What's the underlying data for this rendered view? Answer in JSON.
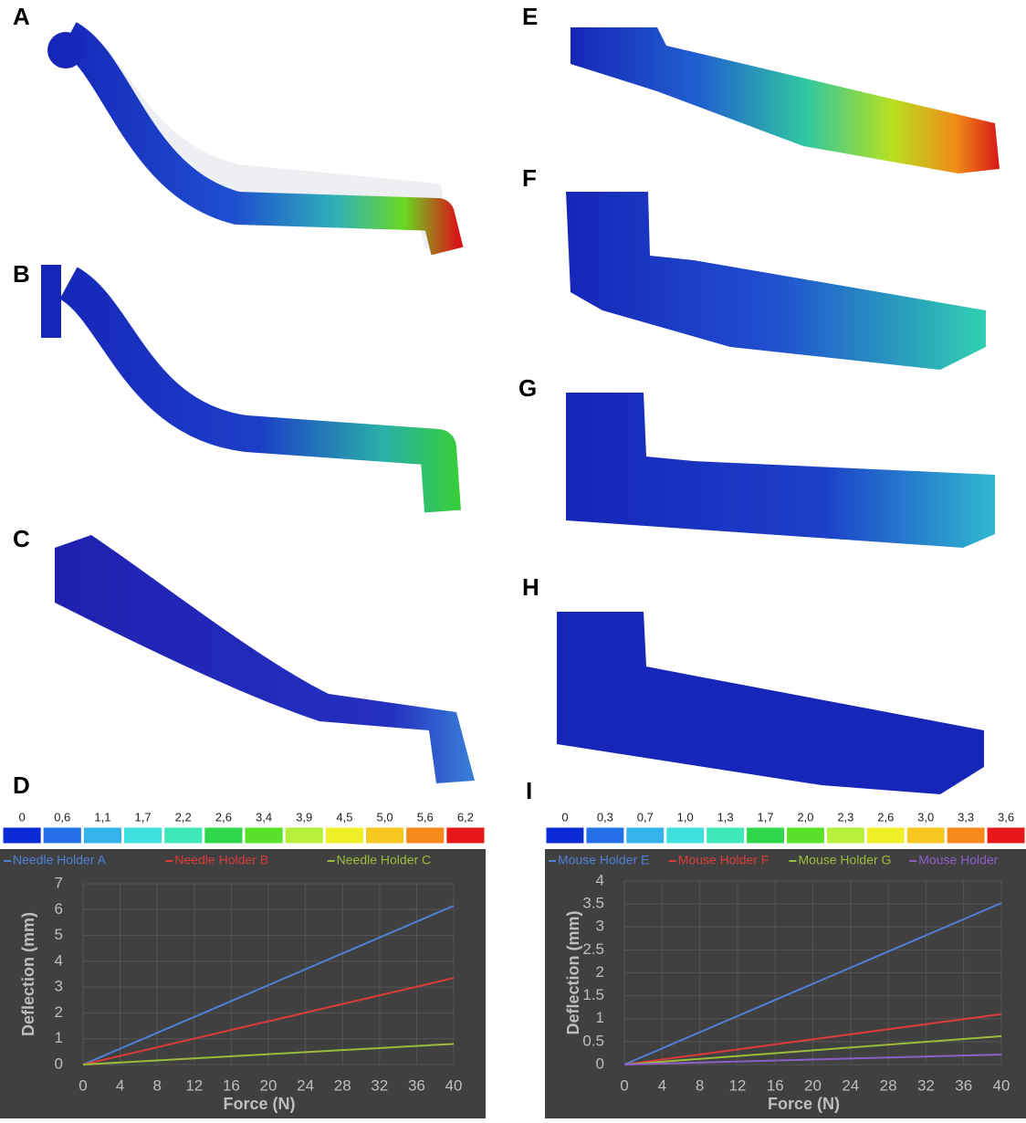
{
  "panels": [
    "A",
    "B",
    "C",
    "D",
    "E",
    "F",
    "G",
    "H",
    "I"
  ],
  "chart_data": [
    {
      "type": "line",
      "x_label": "Force (N)",
      "y_label": "Deflection (mm)",
      "x": [
        0,
        40
      ],
      "series": [
        {
          "name": "Needle Holder A",
          "color": "#4f7fd6",
          "values": [
            0,
            6.15
          ]
        },
        {
          "name": "Needle Holder B",
          "color": "#d93a3a",
          "values": [
            0,
            3.35
          ]
        },
        {
          "name": "Needle Holder C",
          "color": "#9bbb3a",
          "values": [
            0,
            0.8
          ]
        }
      ],
      "xlim": [
        0,
        40
      ],
      "xticks": [
        0,
        4,
        8,
        12,
        16,
        20,
        24,
        28,
        32,
        36,
        40
      ],
      "ylim": [
        0,
        7
      ],
      "yticks": [
        0,
        1,
        2,
        3,
        4,
        5,
        6,
        7
      ],
      "grid": true,
      "colorbar": {
        "ticks": [
          {
            "value": 0,
            "label": "0"
          },
          {
            "value": 0.6,
            "label": "0,6"
          },
          {
            "value": 1.1,
            "label": "1,1"
          },
          {
            "value": 1.7,
            "label": "1,7"
          },
          {
            "value": 2.2,
            "label": "2,2"
          },
          {
            "value": 2.6,
            "label": "2,6"
          },
          {
            "value": 3.4,
            "label": "3,4"
          },
          {
            "value": 3.9,
            "label": "3,9"
          },
          {
            "value": 4.5,
            "label": "4,5"
          },
          {
            "value": 5.0,
            "label": "5,0"
          },
          {
            "value": 5.6,
            "label": "5,6"
          },
          {
            "value": 6.2,
            "label": "6,2"
          }
        ],
        "colors": [
          "#0b2bd6",
          "#2370e8",
          "#35b2ea",
          "#3fe0e0",
          "#3ee8b8",
          "#2fd84a",
          "#5ae22a",
          "#b6f03a",
          "#f0f02a",
          "#f7c820",
          "#f58a1a",
          "#e81818"
        ]
      }
    },
    {
      "type": "line",
      "x_label": "Force (N)",
      "y_label": "Deflection (mm)",
      "x": [
        0,
        40
      ],
      "series": [
        {
          "name": "Mouse Holder E",
          "color": "#4f7fd6",
          "values": [
            0,
            3.52
          ]
        },
        {
          "name": "Mouse Holder F",
          "color": "#d93a3a",
          "values": [
            0,
            1.1
          ]
        },
        {
          "name": "Mouse Holder G",
          "color": "#9bbb3a",
          "values": [
            0,
            0.62
          ]
        },
        {
          "name": "Mouse Holder",
          "color": "#8a5fc8",
          "values": [
            0,
            0.22
          ]
        }
      ],
      "xlim": [
        0,
        40
      ],
      "xticks": [
        0,
        4,
        8,
        12,
        16,
        20,
        24,
        28,
        32,
        36,
        40
      ],
      "ylim": [
        0,
        4
      ],
      "yticks": [
        0,
        0.5,
        1,
        1.5,
        2,
        2.5,
        3,
        3.5,
        4
      ],
      "grid": true,
      "colorbar": {
        "ticks": [
          {
            "value": 0,
            "label": "0"
          },
          {
            "value": 0.3,
            "label": "0,3"
          },
          {
            "value": 0.7,
            "label": "0,7"
          },
          {
            "value": 1.0,
            "label": "1,0"
          },
          {
            "value": 1.3,
            "label": "1,3"
          },
          {
            "value": 1.7,
            "label": "1,7"
          },
          {
            "value": 2.0,
            "label": "2,0"
          },
          {
            "value": 2.3,
            "label": "2,3"
          },
          {
            "value": 2.6,
            "label": "2,6"
          },
          {
            "value": 3.0,
            "label": "3,0"
          },
          {
            "value": 3.3,
            "label": "3,3"
          },
          {
            "value": 3.6,
            "label": "3,6"
          }
        ],
        "colors": [
          "#0b2bd6",
          "#2370e8",
          "#35b2ea",
          "#3fe0e0",
          "#3ee8b8",
          "#2fd84a",
          "#5ae22a",
          "#b6f03a",
          "#f0f02a",
          "#f7c820",
          "#f58a1a",
          "#e81818"
        ]
      }
    }
  ]
}
